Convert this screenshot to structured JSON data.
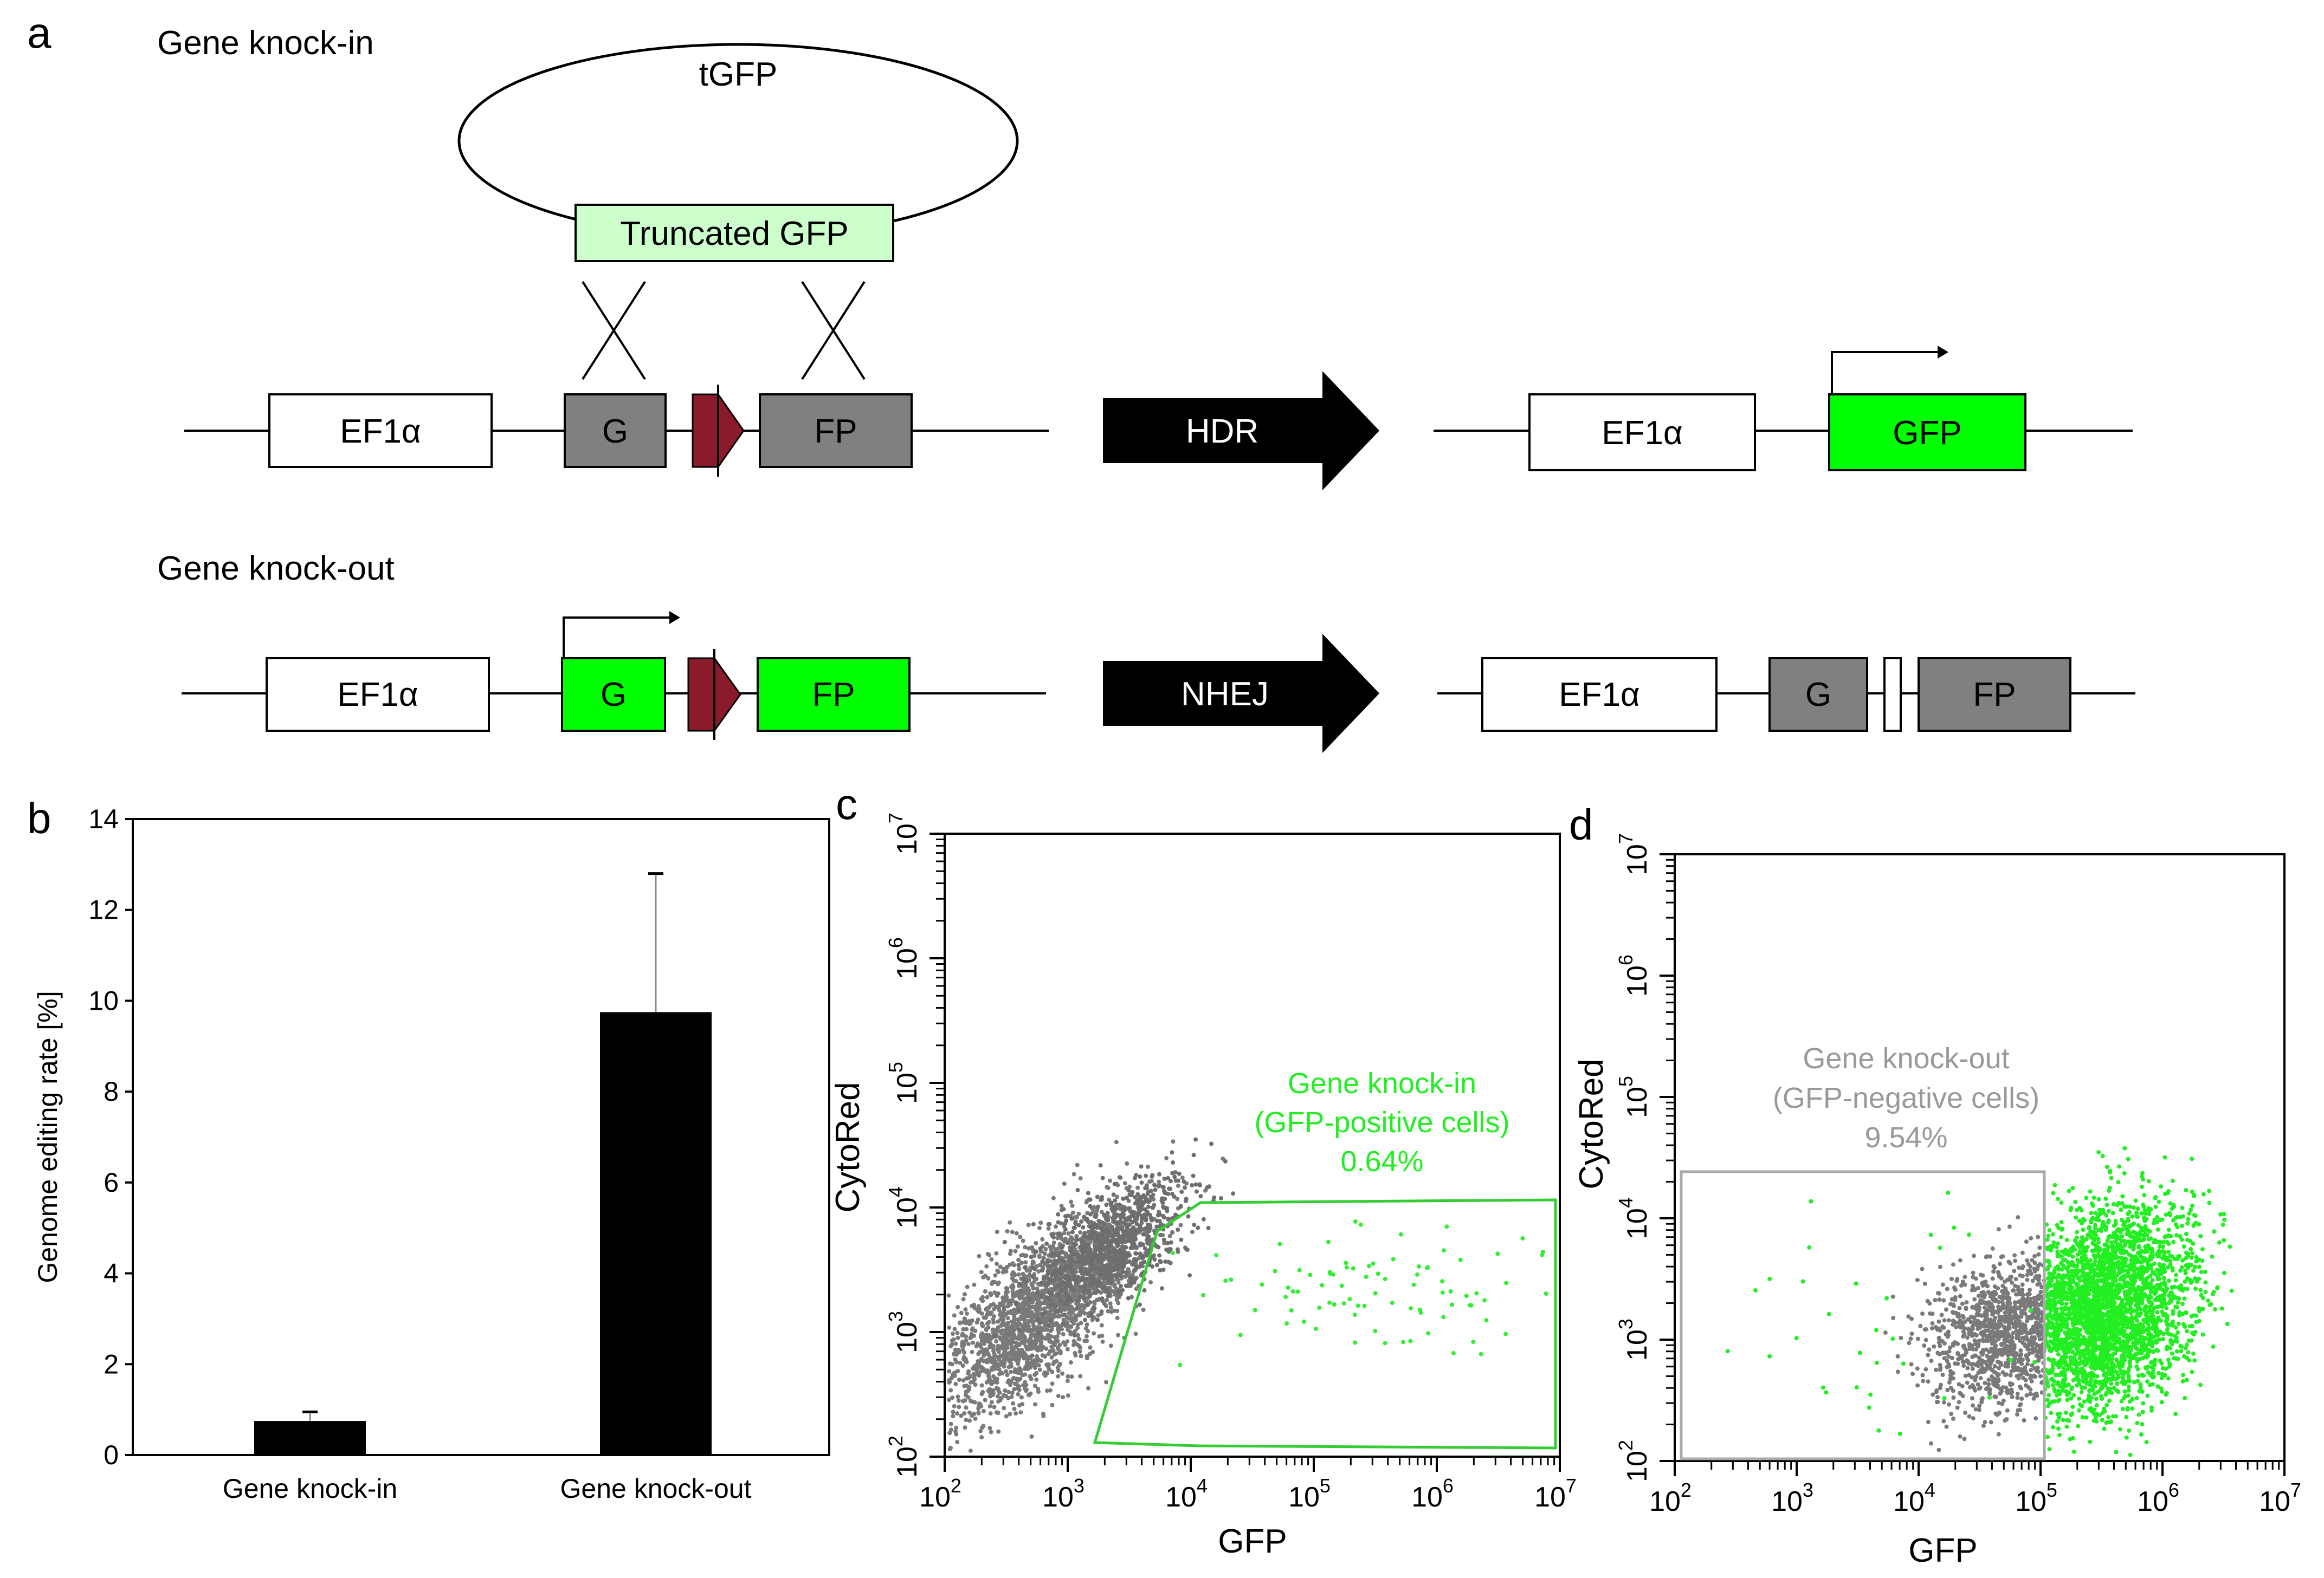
{
  "panel_a": {
    "label": "a",
    "knockin": {
      "title": "Gene knock-in",
      "plasmid": "tGFP",
      "truncated": "Truncated GFP",
      "promoter": "EF1α",
      "g": "G",
      "fp": "FP",
      "arrow": "HDR",
      "result_promoter": "EF1α",
      "result_gene": "GFP"
    },
    "knockout": {
      "title": "Gene knock-out",
      "promoter": "EF1α",
      "g": "G",
      "fp": "FP",
      "arrow": "NHEJ",
      "result_promoter": "EF1α",
      "result_g": "G",
      "result_fp": "FP"
    }
  },
  "panel_b": {
    "label": "b",
    "chart_data": {
      "type": "bar",
      "categories": [
        "Gene knock-in",
        "Gene knock-out"
      ],
      "values": [
        0.75,
        9.75
      ],
      "errors": [
        0.2,
        3.05
      ],
      "ylabel": "Genome editing rate [%]",
      "ylim": [
        0,
        14
      ],
      "yticks": [
        0,
        2,
        4,
        6,
        8,
        10,
        12,
        14
      ],
      "tick_labels": [
        "0",
        "2",
        "4",
        "6",
        "8",
        "10",
        "12",
        "14"
      ]
    }
  },
  "panel_c": {
    "label": "c",
    "xlabel": "GFP",
    "ylabel": "CytoRed",
    "gate_line1": "Gene knock-in",
    "gate_line2": "(GFP-positive cells)",
    "gate_pct": "0.64%"
  },
  "panel_d": {
    "label": "d",
    "xlabel": "GFP",
    "ylabel": "CytoRed",
    "gate_line1": "Gene knock-out",
    "gate_line2": "(GFP-negative cells)",
    "gate_pct": "9.54%"
  },
  "flow_axis": {
    "base": "10",
    "exponents": [
      "2",
      "3",
      "4",
      "5",
      "6",
      "7"
    ],
    "range": [
      2,
      7
    ]
  },
  "colors": {
    "green": "#00ff00",
    "gray_box": "#808080",
    "light_green": "#ccffcc",
    "red_marker": "#8b1a2b",
    "dots_gray": "#7a7a7a",
    "gate_c": "#33cc33",
    "gate_d": "#aaaaaa",
    "label_c": "#22ee22",
    "label_d": "#999999"
  }
}
